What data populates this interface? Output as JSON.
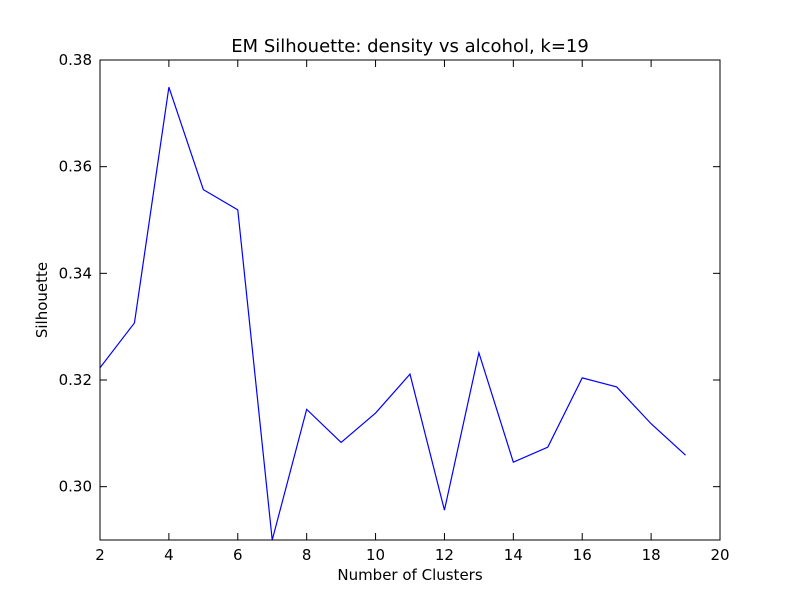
{
  "chart_data": {
    "type": "line",
    "title": "EM Silhouette: density vs alcohol, k=19",
    "xlabel": "Number of Clusters",
    "ylabel": "Silhouette",
    "xlim": [
      2,
      20
    ],
    "ylim": [
      0.29,
      0.38
    ],
    "xticks": [
      "2",
      "4",
      "6",
      "8",
      "10",
      "12",
      "14",
      "16",
      "18",
      "20"
    ],
    "yticks": [
      "0.30",
      "0.32",
      "0.34",
      "0.36",
      "0.38"
    ],
    "grid": false,
    "series": [
      {
        "color": "#0000ff",
        "x": [
          2,
          3,
          4,
          5,
          6,
          7,
          8,
          9,
          10,
          11,
          12,
          13,
          14,
          15,
          16,
          17,
          18,
          19
        ],
        "y": [
          0.3223,
          0.3307,
          0.3749,
          0.3557,
          0.3519,
          0.29,
          0.3145,
          0.3083,
          0.3138,
          0.3211,
          0.2956,
          0.3251,
          0.3046,
          0.3074,
          0.3204,
          0.3187,
          0.3118,
          0.3059
        ]
      }
    ]
  }
}
